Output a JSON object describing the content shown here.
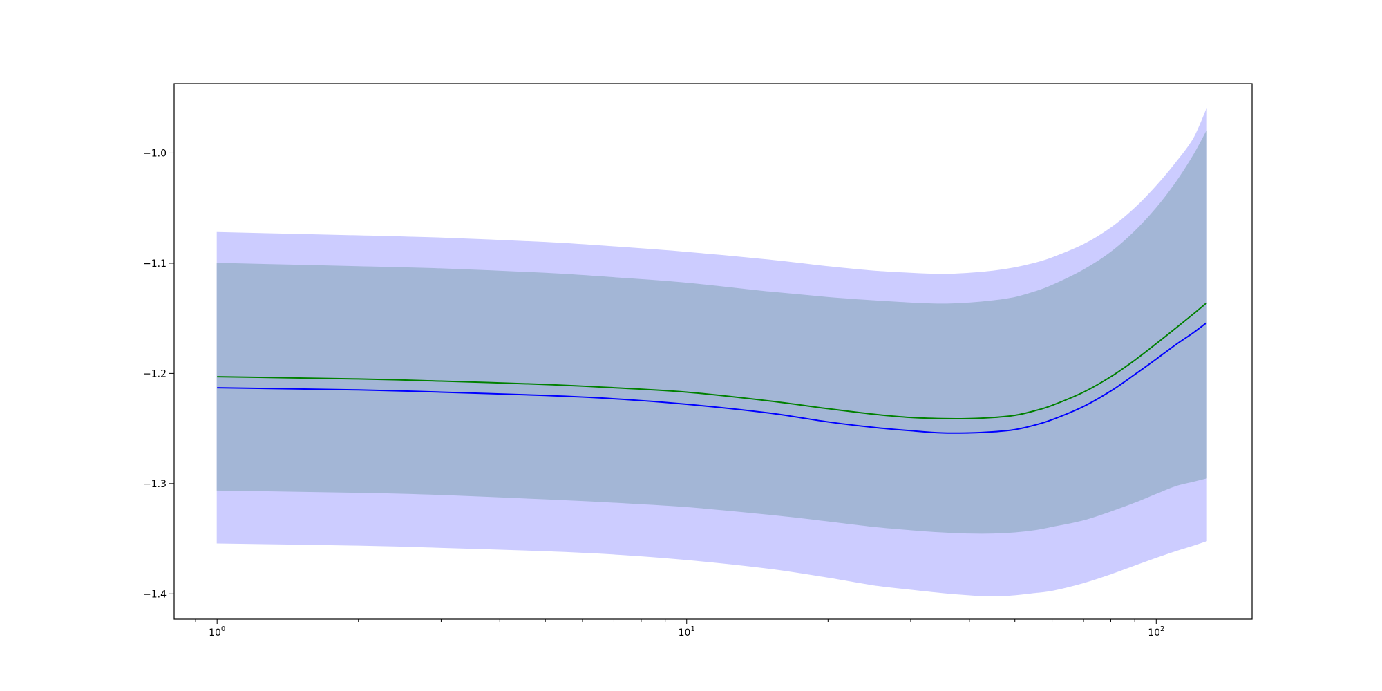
{
  "chart_data": {
    "type": "area",
    "title": "",
    "xlabel": "",
    "ylabel": "",
    "x_scale": "log",
    "xlim": [
      0.81,
      160
    ],
    "ylim": [
      -1.423,
      -0.937
    ],
    "x_ticks": [
      {
        "value": 1,
        "base": "10",
        "exp": "0"
      },
      {
        "value": 10,
        "base": "10",
        "exp": "1"
      },
      {
        "value": 100,
        "base": "10",
        "exp": "2"
      }
    ],
    "y_ticks": [
      {
        "value": -1.0,
        "label": "−1.0"
      },
      {
        "value": -1.1,
        "label": "−1.1"
      },
      {
        "value": -1.2,
        "label": "−1.2"
      },
      {
        "value": -1.3,
        "label": "−1.3"
      },
      {
        "value": -1.4,
        "label": "−1.4"
      }
    ],
    "grid": false,
    "x": [
      1,
      2,
      3,
      5,
      7,
      10,
      15,
      20,
      25,
      30,
      35,
      40,
      45,
      50,
      55,
      60,
      70,
      80,
      90,
      100,
      110,
      120,
      128
    ],
    "bands": [
      {
        "color": "#ccccff",
        "upper": [
          -1.072,
          -1.075,
          -1.077,
          -1.081,
          -1.085,
          -1.09,
          -1.097,
          -1.103,
          -1.107,
          -1.109,
          -1.11,
          -1.109,
          -1.107,
          -1.104,
          -1.1,
          -1.095,
          -1.083,
          -1.068,
          -1.05,
          -1.03,
          -1.009,
          -0.987,
          -0.96
        ],
        "lower": [
          -1.354,
          -1.356,
          -1.358,
          -1.361,
          -1.364,
          -1.369,
          -1.377,
          -1.385,
          -1.392,
          -1.396,
          -1.399,
          -1.401,
          -1.402,
          -1.401,
          -1.399,
          -1.397,
          -1.39,
          -1.382,
          -1.374,
          -1.367,
          -1.361,
          -1.356,
          -1.352
        ]
      },
      {
        "color": "#a3b6d6",
        "upper": [
          -1.1,
          -1.103,
          -1.105,
          -1.109,
          -1.113,
          -1.118,
          -1.126,
          -1.131,
          -1.134,
          -1.136,
          -1.137,
          -1.136,
          -1.134,
          -1.131,
          -1.126,
          -1.12,
          -1.106,
          -1.09,
          -1.071,
          -1.05,
          -1.027,
          -1.002,
          -0.98
        ],
        "lower": [
          -1.306,
          -1.308,
          -1.31,
          -1.314,
          -1.317,
          -1.321,
          -1.328,
          -1.334,
          -1.339,
          -1.342,
          -1.344,
          -1.345,
          -1.345,
          -1.344,
          -1.342,
          -1.339,
          -1.333,
          -1.325,
          -1.317,
          -1.309,
          -1.302,
          -1.298,
          -1.295
        ]
      }
    ],
    "series": [
      {
        "color": "#008000",
        "values": [
          -1.203,
          -1.205,
          -1.207,
          -1.21,
          -1.213,
          -1.217,
          -1.225,
          -1.232,
          -1.237,
          -1.24,
          -1.241,
          -1.241,
          -1.24,
          -1.238,
          -1.234,
          -1.229,
          -1.217,
          -1.203,
          -1.188,
          -1.173,
          -1.159,
          -1.146,
          -1.136
        ]
      },
      {
        "color": "#0000ff",
        "values": [
          -1.213,
          -1.215,
          -1.217,
          -1.22,
          -1.223,
          -1.228,
          -1.236,
          -1.244,
          -1.249,
          -1.252,
          -1.254,
          -1.254,
          -1.253,
          -1.251,
          -1.247,
          -1.242,
          -1.23,
          -1.216,
          -1.201,
          -1.187,
          -1.174,
          -1.163,
          -1.154
        ]
      }
    ]
  }
}
